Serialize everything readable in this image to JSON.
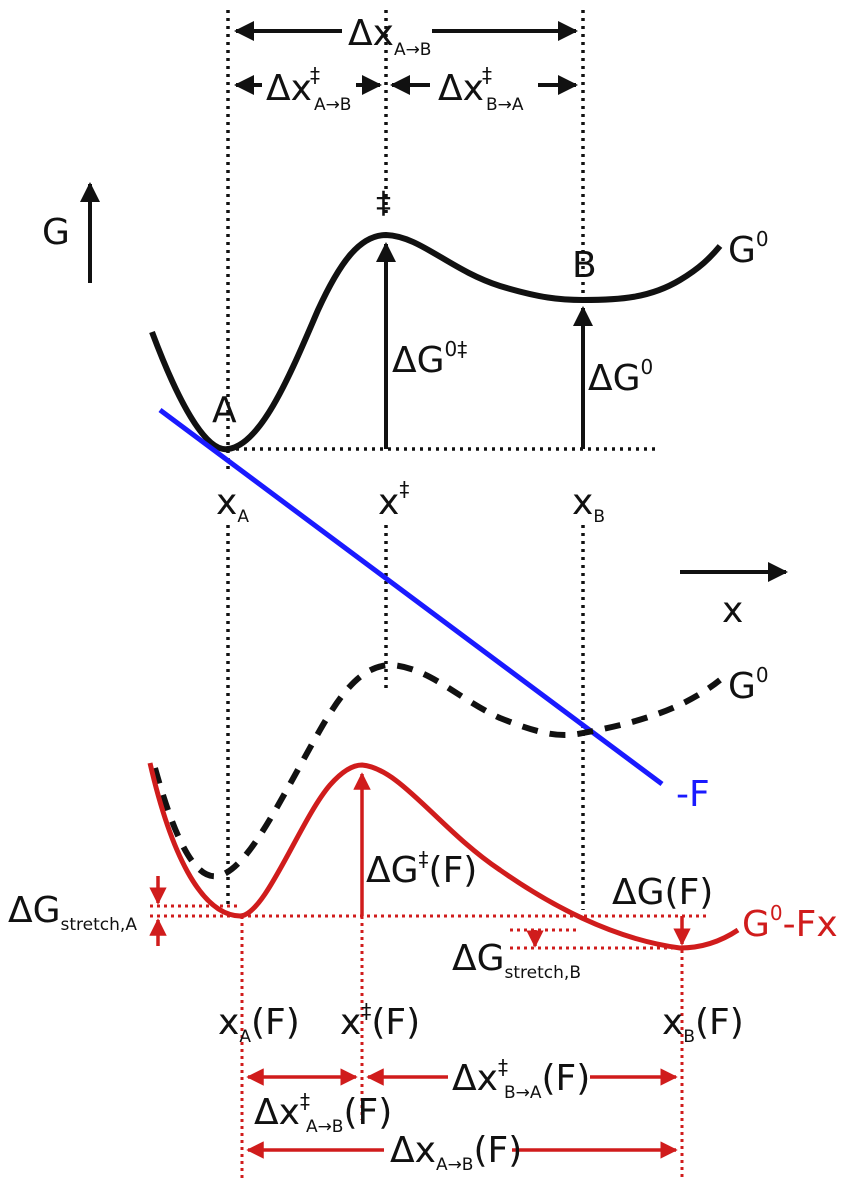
{
  "colors": {
    "black": "#111111",
    "red": "#d01c1c",
    "blue": "#1a1aff"
  },
  "top": {
    "axis_g": "G",
    "axis_x": "x",
    "dx_ab": {
      "main": "Δx",
      "sub": "A→B"
    },
    "dx_ts_ab": {
      "main": "Δx",
      "sup": "‡",
      "sub": "A→B"
    },
    "dx_ts_ba": {
      "main": "Δx",
      "sup": "‡",
      "sub": "B→A"
    },
    "ts_mark": "‡",
    "state_a": "A",
    "state_b": "B",
    "curve_label": {
      "main": "G",
      "sup": "0"
    },
    "dg_ts": {
      "main": "ΔG",
      "sup": "0‡"
    },
    "dg0": {
      "main": "ΔG",
      "sup": "0"
    },
    "xa": {
      "main": "x",
      "sub": "A"
    },
    "xts": {
      "main": "x",
      "sup": "‡"
    },
    "xb": {
      "main": "x",
      "sub": "B"
    }
  },
  "bottom": {
    "curve_label_dashed": {
      "main": "G",
      "sup": "0"
    },
    "force_label": "-F",
    "tilted_label": {
      "main": "G",
      "sup": "0",
      "rest": "-Fx"
    },
    "dg_ts_f": {
      "main": "ΔG",
      "sup": "‡",
      "rest": "(F)"
    },
    "dg_f": "ΔG(F)",
    "dg_stretch_a": {
      "main": "ΔG",
      "sub": "stretch,A"
    },
    "dg_stretch_b": {
      "main": "ΔG",
      "sub": "stretch,B"
    },
    "xa_f": {
      "main": "x",
      "sub": "A",
      "rest": "(F)"
    },
    "xts_f": {
      "main": "x",
      "sup": "‡",
      "rest": "(F)"
    },
    "xb_f": {
      "main": "x",
      "sub": "B",
      "rest": "(F)"
    },
    "dx_ts_ba_f": {
      "main": "Δx",
      "sup": "‡",
      "sub": "B→A",
      "rest": "(F)"
    },
    "dx_ts_ab_f": {
      "main": "Δx",
      "sup": "‡",
      "sub": "A→B",
      "rest": "(F)"
    },
    "dx_ab_f": {
      "main": "Δx",
      "sub": "A→B",
      "rest": "(F)"
    }
  }
}
